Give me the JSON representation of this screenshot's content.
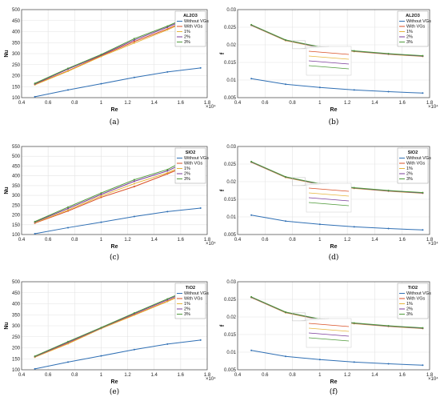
{
  "chart_data": [
    {
      "id": "a",
      "type": "line",
      "caption": "(a)",
      "xlabel": "Re",
      "ylabel": "Nu",
      "x_multiplier": "×10⁴",
      "title": "AL2O3",
      "xlim": [
        0.4,
        1.8
      ],
      "ylim": [
        100,
        500
      ],
      "xticks": [
        0.4,
        0.6,
        0.8,
        1,
        1.2,
        1.4,
        1.6,
        1.8
      ],
      "yticks": [
        100,
        150,
        200,
        250,
        300,
        350,
        400,
        450,
        500
      ],
      "x": [
        0.5,
        0.75,
        1.0,
        1.25,
        1.5,
        1.75
      ],
      "series": [
        {
          "name": "Without VGs",
          "color": "#2f6fb4",
          "values": [
            104,
            135,
            163,
            192,
            217,
            235
          ]
        },
        {
          "name": "With VGs",
          "color": "#d94f25",
          "values": [
            160,
            222,
            290,
            355,
            412,
            478
          ]
        },
        {
          "name": "1%",
          "color": "#e6b53c",
          "values": [
            158,
            220,
            287,
            348,
            408,
            475
          ]
        },
        {
          "name": "2%",
          "color": "#7a3c9a",
          "values": [
            162,
            230,
            293,
            362,
            420,
            485
          ]
        },
        {
          "name": "3%",
          "color": "#4f9a3a",
          "values": [
            165,
            233,
            296,
            368,
            425,
            490
          ]
        }
      ]
    },
    {
      "id": "b",
      "type": "line",
      "caption": "(b)",
      "xlabel": "Re",
      "ylabel": "f",
      "x_multiplier": "×10⁴",
      "title": "AL2O3",
      "xlim": [
        0.4,
        1.8
      ],
      "ylim": [
        0.005,
        0.03
      ],
      "xticks": [
        0.4,
        0.6,
        0.8,
        1,
        1.2,
        1.4,
        1.6,
        1.8
      ],
      "yticks": [
        0.005,
        0.01,
        0.015,
        0.02,
        0.025,
        0.03
      ],
      "x": [
        0.5,
        0.75,
        1.0,
        1.25,
        1.5,
        1.75
      ],
      "series": [
        {
          "name": "Without VGs",
          "color": "#2f6fb4",
          "values": [
            0.0104,
            0.0088,
            0.0079,
            0.0072,
            0.0067,
            0.0063
          ]
        },
        {
          "name": "With VGs",
          "color": "#d94f25",
          "values": [
            0.0256,
            0.0213,
            0.0193,
            0.0182,
            0.0174,
            0.0168
          ]
        },
        {
          "name": "1%",
          "color": "#e6b53c",
          "values": [
            0.0255,
            0.0212,
            0.0192,
            0.0181,
            0.0173,
            0.0167
          ]
        },
        {
          "name": "2%",
          "color": "#7a3c9a",
          "values": [
            0.0256,
            0.0213,
            0.0193,
            0.0182,
            0.0174,
            0.0168
          ]
        },
        {
          "name": "3%",
          "color": "#4f9a3a",
          "values": [
            0.0257,
            0.0214,
            0.0194,
            0.0183,
            0.0175,
            0.0169
          ]
        }
      ]
    },
    {
      "id": "c",
      "type": "line",
      "caption": "(c)",
      "xlabel": "Re",
      "ylabel": "Nu",
      "x_multiplier": "×10⁴",
      "title": "SIO2",
      "xlim": [
        0.4,
        1.8
      ],
      "ylim": [
        100,
        550
      ],
      "xticks": [
        0.4,
        0.6,
        0.8,
        1,
        1.2,
        1.4,
        1.6,
        1.8
      ],
      "yticks": [
        100,
        150,
        200,
        250,
        300,
        350,
        400,
        450,
        500,
        550
      ],
      "x": [
        0.5,
        0.75,
        1.0,
        1.25,
        1.5,
        1.75
      ],
      "series": [
        {
          "name": "Without VGs",
          "color": "#2f6fb4",
          "values": [
            104,
            135,
            163,
            192,
            217,
            235
          ]
        },
        {
          "name": "With VGs",
          "color": "#d94f25",
          "values": [
            158,
            220,
            290,
            345,
            410,
            478
          ]
        },
        {
          "name": "1%",
          "color": "#e6b53c",
          "values": [
            160,
            225,
            297,
            360,
            415,
            490
          ]
        },
        {
          "name": "2%",
          "color": "#7a3c9a",
          "values": [
            163,
            233,
            305,
            372,
            425,
            505
          ]
        },
        {
          "name": "3%",
          "color": "#4f9a3a",
          "values": [
            166,
            240,
            312,
            380,
            432,
            520
          ]
        }
      ]
    },
    {
      "id": "d",
      "type": "line",
      "caption": "(d)",
      "xlabel": "Re",
      "ylabel": "f",
      "x_multiplier": "×10⁴",
      "title": "SIO2",
      "xlim": [
        0.4,
        1.8
      ],
      "ylim": [
        0.005,
        0.03
      ],
      "xticks": [
        0.4,
        0.6,
        0.8,
        1,
        1.2,
        1.4,
        1.6,
        1.8
      ],
      "yticks": [
        0.005,
        0.01,
        0.015,
        0.02,
        0.025,
        0.03
      ],
      "x": [
        0.5,
        0.75,
        1.0,
        1.25,
        1.5,
        1.75
      ],
      "series": [
        {
          "name": "Without VGs",
          "color": "#2f6fb4",
          "values": [
            0.0105,
            0.0088,
            0.0079,
            0.0072,
            0.0067,
            0.0063
          ]
        },
        {
          "name": "With VGs",
          "color": "#d94f25",
          "values": [
            0.0256,
            0.0213,
            0.0193,
            0.0182,
            0.0174,
            0.0168
          ]
        },
        {
          "name": "1%",
          "color": "#e6b53c",
          "values": [
            0.0255,
            0.0212,
            0.0192,
            0.0181,
            0.0173,
            0.0167
          ]
        },
        {
          "name": "2%",
          "color": "#7a3c9a",
          "values": [
            0.0256,
            0.0213,
            0.0193,
            0.0182,
            0.0174,
            0.0168
          ]
        },
        {
          "name": "3%",
          "color": "#4f9a3a",
          "values": [
            0.0257,
            0.0214,
            0.0194,
            0.0183,
            0.0175,
            0.0169
          ]
        }
      ]
    },
    {
      "id": "e",
      "type": "line",
      "caption": "(e)",
      "xlabel": "Re",
      "ylabel": "Nu",
      "x_multiplier": "×10⁴",
      "title": "TiO2",
      "xlim": [
        0.4,
        1.8
      ],
      "ylim": [
        100,
        500
      ],
      "xticks": [
        0.4,
        0.6,
        0.8,
        1,
        1.2,
        1.4,
        1.6,
        1.8
      ],
      "yticks": [
        100,
        150,
        200,
        250,
        300,
        350,
        400,
        450,
        500
      ],
      "x": [
        0.5,
        0.75,
        1.0,
        1.25,
        1.5,
        1.75
      ],
      "series": [
        {
          "name": "Without VGs",
          "color": "#2f6fb4",
          "values": [
            104,
            135,
            163,
            192,
            217,
            235
          ]
        },
        {
          "name": "With VGs",
          "color": "#d94f25",
          "values": [
            158,
            220,
            288,
            350,
            412,
            478
          ]
        },
        {
          "name": "1%",
          "color": "#e6b53c",
          "values": [
            157,
            218,
            287,
            348,
            410,
            476
          ]
        },
        {
          "name": "2%",
          "color": "#7a3c9a",
          "values": [
            160,
            225,
            290,
            355,
            418,
            482
          ]
        },
        {
          "name": "3%",
          "color": "#4f9a3a",
          "values": [
            162,
            228,
            292,
            358,
            422,
            486
          ]
        }
      ]
    },
    {
      "id": "f",
      "type": "line",
      "caption": "(f)",
      "xlabel": "Re",
      "ylabel": "f",
      "x_multiplier": "×10⁴",
      "title": "TiO2",
      "xlim": [
        0.4,
        1.8
      ],
      "ylim": [
        0.005,
        0.03
      ],
      "xticks": [
        0.4,
        0.6,
        0.8,
        1,
        1.2,
        1.4,
        1.6,
        1.8
      ],
      "yticks": [
        0.005,
        0.01,
        0.015,
        0.02,
        0.025,
        0.03
      ],
      "x": [
        0.5,
        0.75,
        1.0,
        1.25,
        1.5,
        1.75
      ],
      "series": [
        {
          "name": "Without VGs",
          "color": "#2f6fb4",
          "values": [
            0.0105,
            0.0088,
            0.0079,
            0.0072,
            0.0067,
            0.0063
          ]
        },
        {
          "name": "With VGs",
          "color": "#d94f25",
          "values": [
            0.0256,
            0.0213,
            0.0193,
            0.0182,
            0.0174,
            0.0168
          ]
        },
        {
          "name": "1%",
          "color": "#e6b53c",
          "values": [
            0.0255,
            0.0212,
            0.0192,
            0.0181,
            0.0173,
            0.0167
          ]
        },
        {
          "name": "2%",
          "color": "#7a3c9a",
          "values": [
            0.0256,
            0.0213,
            0.0193,
            0.0182,
            0.0174,
            0.0168
          ]
        },
        {
          "name": "3%",
          "color": "#4f9a3a",
          "values": [
            0.0257,
            0.0214,
            0.0194,
            0.0183,
            0.0175,
            0.0169
          ]
        }
      ]
    }
  ]
}
